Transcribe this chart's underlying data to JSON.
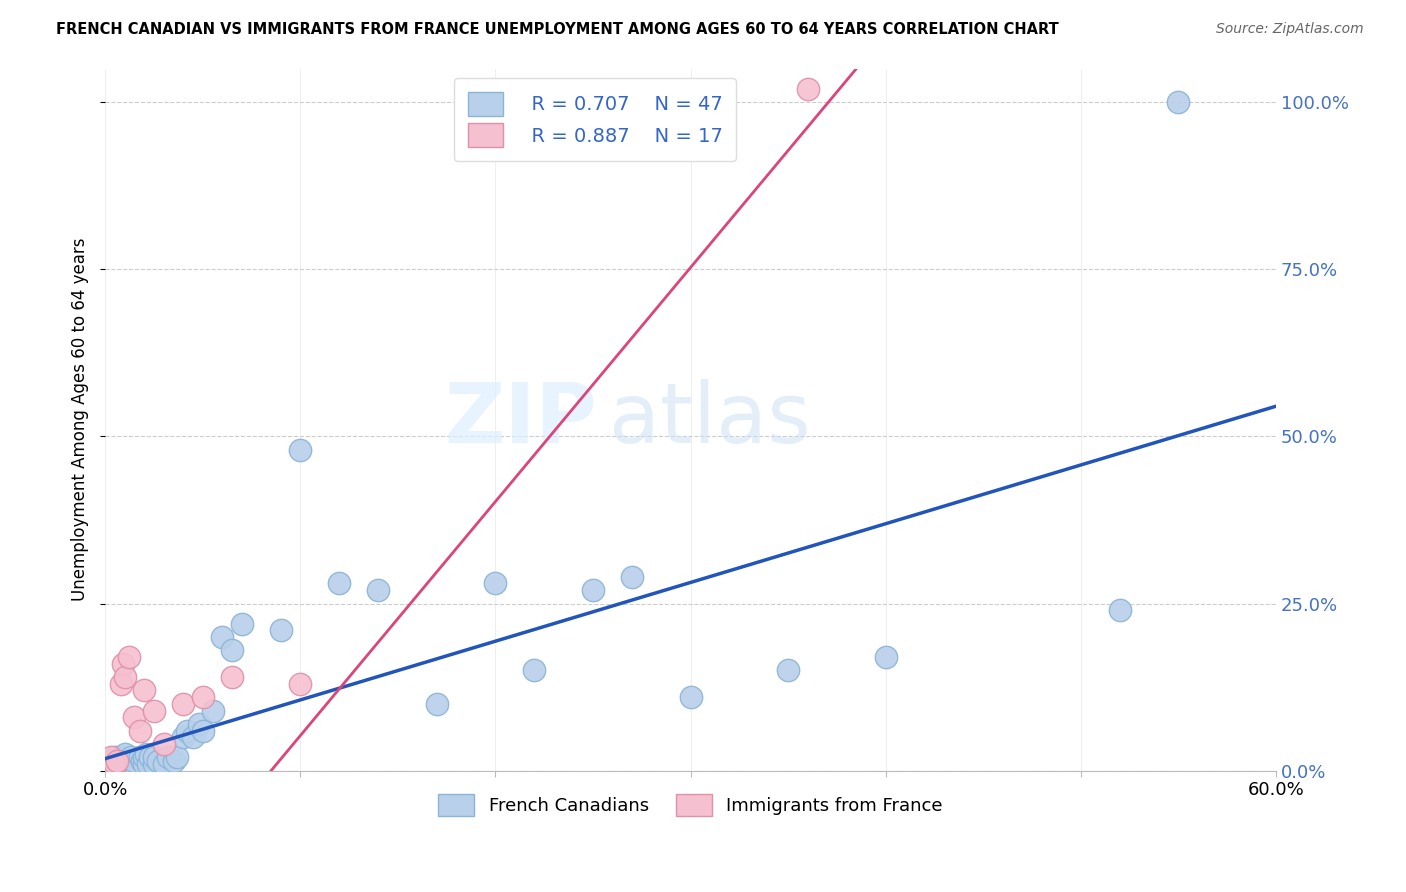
{
  "title": "FRENCH CANADIAN VS IMMIGRANTS FROM FRANCE UNEMPLOYMENT AMONG AGES 60 TO 64 YEARS CORRELATION CHART",
  "source": "Source: ZipAtlas.com",
  "ylabel": "Unemployment Among Ages 60 to 64 years",
  "xlim": [
    0.0,
    0.6
  ],
  "ylim": [
    0.0,
    1.05
  ],
  "xticks": [
    0.0,
    0.1,
    0.2,
    0.3,
    0.4,
    0.5,
    0.6
  ],
  "ytick_positions": [
    0.0,
    0.25,
    0.5,
    0.75,
    1.0
  ],
  "ytick_labels": [
    "0.0%",
    "25.0%",
    "50.0%",
    "75.0%",
    "100.0%"
  ],
  "blue_R": "R = 0.707",
  "blue_N": "N = 47",
  "pink_R": "R = 0.887",
  "pink_N": "N = 17",
  "blue_color": "#b8d0ea",
  "blue_edge": "#8ab4d8",
  "pink_color": "#f5c0d0",
  "pink_edge": "#e090a8",
  "blue_line_color": "#2255bb",
  "pink_line_color": "#dd4477",
  "watermark_zip": "ZIP",
  "watermark_atlas": "atlas",
  "blue_line_x0": 0.0,
  "blue_line_y0": 0.018,
  "blue_line_x1": 0.6,
  "blue_line_y1": 0.545,
  "pink_line_x0": 0.085,
  "pink_line_y0": 0.0,
  "pink_line_x1": 0.385,
  "pink_line_y1": 1.05,
  "blue_scatter_x": [
    0.003,
    0.005,
    0.007,
    0.008,
    0.01,
    0.01,
    0.012,
    0.013,
    0.015,
    0.015,
    0.018,
    0.019,
    0.02,
    0.02,
    0.021,
    0.022,
    0.023,
    0.025,
    0.025,
    0.027,
    0.03,
    0.032,
    0.035,
    0.037,
    0.04,
    0.042,
    0.045,
    0.048,
    0.05,
    0.055,
    0.06,
    0.065,
    0.07,
    0.09,
    0.1,
    0.12,
    0.14,
    0.17,
    0.2,
    0.22,
    0.25,
    0.27,
    0.3,
    0.35,
    0.4,
    0.52,
    0.55
  ],
  "blue_scatter_y": [
    0.01,
    0.02,
    0.015,
    0.02,
    0.01,
    0.025,
    0.01,
    0.02,
    0.01,
    0.015,
    0.02,
    0.015,
    0.01,
    0.02,
    0.025,
    0.01,
    0.02,
    0.01,
    0.02,
    0.015,
    0.01,
    0.02,
    0.015,
    0.02,
    0.05,
    0.06,
    0.05,
    0.07,
    0.06,
    0.09,
    0.2,
    0.18,
    0.22,
    0.21,
    0.48,
    0.28,
    0.27,
    0.1,
    0.28,
    0.15,
    0.27,
    0.29,
    0.11,
    0.15,
    0.17,
    0.24,
    1.0
  ],
  "pink_scatter_x": [
    0.003,
    0.005,
    0.006,
    0.008,
    0.009,
    0.01,
    0.012,
    0.015,
    0.018,
    0.02,
    0.025,
    0.03,
    0.04,
    0.05,
    0.065,
    0.1,
    0.36
  ],
  "pink_scatter_y": [
    0.02,
    0.01,
    0.015,
    0.13,
    0.16,
    0.14,
    0.17,
    0.08,
    0.06,
    0.12,
    0.09,
    0.04,
    0.1,
    0.11,
    0.14,
    0.13,
    1.02
  ]
}
